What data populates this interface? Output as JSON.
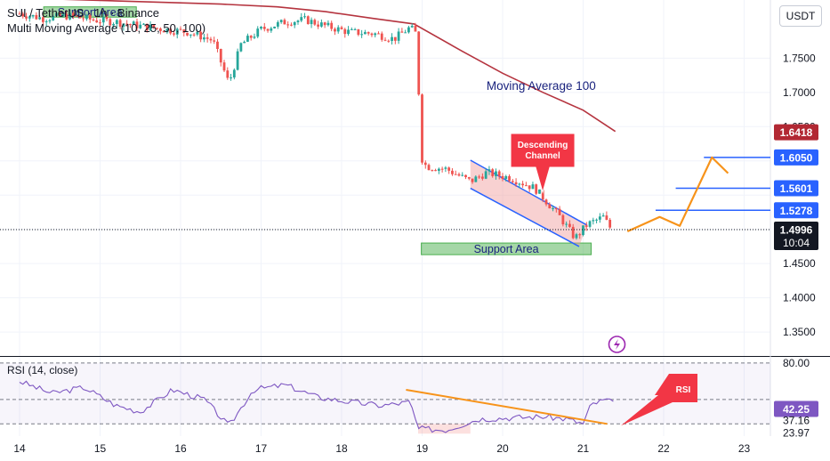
{
  "header": {
    "symbol_line": "SUI / TetherUS · 1h · Binance",
    "indicator_line": "Multi Moving Average (10, 25, 50, 100)"
  },
  "currency_button": "USDT",
  "colors": {
    "up": "#26a69a",
    "down": "#ef5350",
    "ma100": "#b5343f",
    "blue_line": "#2962ff",
    "orange": "#f7931a",
    "channel_fill": "#ef9a9a",
    "support_fill": "#4caf50",
    "rsi_line": "#7e57c2",
    "callout_red": "#f23645",
    "price_tag_blue": "#2962ff",
    "price_tag_red": "#b22833",
    "current_tag": "#131722"
  },
  "annotations": {
    "ma100_label": "Moving Average 100",
    "descending_channel": "Descending\nChannel",
    "support_area_top": "Support Area",
    "support_area_bottom": "Support Area",
    "rsi_callout": "RSI"
  },
  "price_tags": {
    "ma_value": "1.6418",
    "level_1": "1.6050",
    "level_2": "1.5601",
    "level_3": "1.5278",
    "current_price": "1.4996",
    "countdown": "10:04"
  },
  "rsi": {
    "legend": "RSI (14, close)",
    "value": "42.25",
    "axis_labels": [
      "80.00",
      "37.16",
      "23.97"
    ]
  },
  "chart_data": {
    "type": "candlestick",
    "price_axis": {
      "tick_labels": [
        "1.7500",
        "1.7000",
        "1.6500",
        "1.4500",
        "1.4000",
        "1.3500"
      ],
      "ylim": [
        1.315,
        1.835
      ]
    },
    "time_axis": {
      "tick_labels": [
        "14",
        "15",
        "16",
        "17",
        "18",
        "19",
        "20",
        "21",
        "22",
        "23"
      ]
    },
    "key_levels": [
      1.605,
      1.5601,
      1.5278
    ],
    "current_price": 1.4996,
    "ma100_last": 1.6418,
    "ma100_path": [
      [
        14.0,
        1.838
      ],
      [
        16.5,
        1.829
      ],
      [
        17.2,
        1.825
      ],
      [
        17.8,
        1.818
      ],
      [
        18.4,
        1.808
      ],
      [
        18.9,
        1.8
      ],
      [
        19.5,
        1.76
      ],
      [
        20.0,
        1.728
      ],
      [
        20.5,
        1.7
      ],
      [
        21.0,
        1.674
      ],
      [
        21.4,
        1.643
      ]
    ],
    "close_path": [
      [
        14.0,
        1.815
      ],
      [
        14.3,
        1.808
      ],
      [
        14.6,
        1.812
      ],
      [
        14.9,
        1.806
      ],
      [
        15.2,
        1.803
      ],
      [
        15.5,
        1.797
      ],
      [
        15.8,
        1.792
      ],
      [
        16.1,
        1.788
      ],
      [
        16.4,
        1.776
      ],
      [
        16.6,
        1.713
      ],
      [
        16.75,
        1.77
      ],
      [
        17.0,
        1.792
      ],
      [
        17.3,
        1.803
      ],
      [
        17.55,
        1.806
      ],
      [
        17.8,
        1.797
      ],
      [
        18.1,
        1.788
      ],
      [
        18.4,
        1.786
      ],
      [
        18.65,
        1.778
      ],
      [
        18.85,
        1.795
      ],
      [
        18.93,
        1.785
      ],
      [
        18.96,
        1.695
      ],
      [
        18.99,
        1.605
      ],
      [
        19.05,
        1.592
      ],
      [
        19.3,
        1.588
      ],
      [
        19.6,
        1.57
      ],
      [
        19.8,
        1.583
      ],
      [
        20.1,
        1.575
      ],
      [
        20.4,
        1.56
      ],
      [
        20.7,
        1.52
      ],
      [
        20.9,
        1.487
      ],
      [
        21.05,
        1.507
      ],
      [
        21.25,
        1.518
      ],
      [
        21.35,
        1.5
      ]
    ],
    "descending_channel": {
      "upper": [
        [
          19.6,
          1.601
        ],
        [
          21.05,
          1.506
        ]
      ],
      "lower": [
        [
          19.6,
          1.56
        ],
        [
          20.95,
          1.475
        ]
      ]
    },
    "support_area_bottom": {
      "x": [
        18.99,
        21.1
      ],
      "y": [
        1.463,
        1.48
      ]
    },
    "support_area_top": {
      "x": [
        14.3,
        15.45
      ],
      "y": [
        1.81,
        1.825
      ]
    },
    "projection_path": [
      [
        21.55,
        1.497
      ],
      [
        21.95,
        1.518
      ],
      [
        22.2,
        1.505
      ],
      [
        22.6,
        1.605
      ],
      [
        22.8,
        1.582
      ]
    ],
    "rsi": {
      "levels": [
        80,
        50,
        30
      ],
      "ylim": [
        20,
        85
      ],
      "path": [
        [
          14.0,
          65
        ],
        [
          14.4,
          55
        ],
        [
          14.8,
          60
        ],
        [
          15.2,
          45
        ],
        [
          15.5,
          40
        ],
        [
          15.9,
          58
        ],
        [
          16.3,
          50
        ],
        [
          16.6,
          28
        ],
        [
          16.9,
          58
        ],
        [
          17.3,
          62
        ],
        [
          17.7,
          52
        ],
        [
          18.1,
          48
        ],
        [
          18.5,
          45
        ],
        [
          18.85,
          48
        ],
        [
          18.95,
          26
        ],
        [
          19.3,
          25
        ],
        [
          19.7,
          34
        ],
        [
          20.1,
          35
        ],
        [
          20.5,
          36
        ],
        [
          20.8,
          34
        ],
        [
          21.0,
          30
        ],
        [
          21.1,
          46
        ],
        [
          21.3,
          50
        ],
        [
          21.4,
          45
        ]
      ],
      "divergence_line": [
        [
          18.8,
          58
        ],
        [
          21.3,
          30
        ]
      ]
    }
  }
}
